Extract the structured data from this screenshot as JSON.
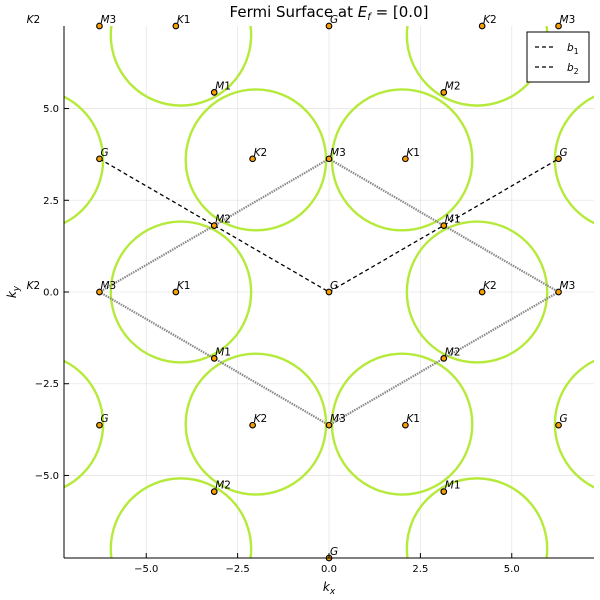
{
  "chart_data": {
    "type": "scatter",
    "title": "Fermi Surface at E_f = [0.0]",
    "title_parts": {
      "main": "Fermi Surface at ",
      "var": "E",
      "sub": "f",
      "rest": " = [0.0]"
    },
    "xlabel": {
      "base": "k",
      "sub": "x"
    },
    "ylabel": {
      "base": "k",
      "sub": "y"
    },
    "xlim": [
      -7.25,
      7.25
    ],
    "ylim": [
      -7.25,
      7.25
    ],
    "xticks": [
      -5.0,
      -2.5,
      0.0,
      2.5,
      5.0
    ],
    "yticks": [
      -5.0,
      -2.5,
      0.0,
      2.5,
      5.0
    ],
    "xtick_labels": [
      "−5.0",
      "−2.5",
      "0.0",
      "2.5",
      "5.0"
    ],
    "ytick_labels": [
      "−5.0",
      "−2.5",
      "0.0",
      "2.5",
      "5.0"
    ],
    "grid": true,
    "legend": {
      "placement": "top-right",
      "entries": [
        {
          "base": "b",
          "sub": "1",
          "style": "dashed",
          "color": "#000000"
        },
        {
          "base": "b",
          "sub": "2",
          "style": "dashed",
          "color": "#000000"
        }
      ]
    },
    "fermi_surface": {
      "color": "#b5ea3b",
      "radius": 1.92,
      "centers": [
        [
          -4.05,
          7.0
        ],
        [
          -4.05,
          0.0
        ],
        [
          -4.05,
          -7.0
        ],
        [
          4.05,
          7.0
        ],
        [
          4.05,
          0.0
        ],
        [
          4.05,
          -7.0
        ],
        [
          -2.0,
          3.6
        ],
        [
          -2.0,
          -3.6
        ],
        [
          2.0,
          3.6
        ],
        [
          2.0,
          -3.6
        ],
        [
          8.1,
          3.6
        ],
        [
          8.1,
          -3.6
        ],
        [
          -8.1,
          3.6
        ],
        [
          -8.1,
          -3.6
        ]
      ]
    },
    "zone_boundary": {
      "color": "#888888",
      "polygons": [
        [
          [
            0,
            3.63
          ],
          [
            -3.14,
            1.81
          ],
          [
            -6.28,
            0
          ],
          [
            -3.14,
            -1.81
          ],
          [
            0,
            -3.63
          ],
          [
            3.14,
            -1.81
          ],
          [
            6.28,
            0
          ],
          [
            3.14,
            1.81
          ]
        ]
      ]
    },
    "reciprocal_vectors": [
      {
        "name": "b1",
        "from": [
          -6.28,
          3.63
        ],
        "to": [
          0,
          0
        ],
        "through": [
          -3.14,
          1.81
        ]
      },
      {
        "name": "b2",
        "from": [
          0,
          0
        ],
        "to": [
          6.28,
          3.63
        ],
        "through": [
          3.14,
          1.81
        ]
      }
    ],
    "points": [
      {
        "label": "K2",
        "x": -8.3,
        "y": 7.25
      },
      {
        "label": "M3",
        "x": -6.28,
        "y": 7.25
      },
      {
        "label": "K1",
        "x": -4.19,
        "y": 7.25
      },
      {
        "label": "G",
        "x": 0.0,
        "y": 7.25
      },
      {
        "label": "K2",
        "x": 4.19,
        "y": 7.25
      },
      {
        "label": "M3",
        "x": 6.28,
        "y": 7.25
      },
      {
        "label": "M1",
        "x": -3.14,
        "y": 5.44
      },
      {
        "label": "M2",
        "x": 3.14,
        "y": 5.44
      },
      {
        "label": "G",
        "x": -6.28,
        "y": 3.63
      },
      {
        "label": "K2",
        "x": -2.09,
        "y": 3.63
      },
      {
        "label": "M3",
        "x": 0.0,
        "y": 3.63
      },
      {
        "label": "K1",
        "x": 2.09,
        "y": 3.63
      },
      {
        "label": "G",
        "x": 6.28,
        "y": 3.63
      },
      {
        "label": "M2",
        "x": -3.14,
        "y": 1.81
      },
      {
        "label": "M1",
        "x": 3.14,
        "y": 1.81
      },
      {
        "label": "K2",
        "x": -8.3,
        "y": 0.0
      },
      {
        "label": "M3",
        "x": -6.28,
        "y": 0.0
      },
      {
        "label": "K1",
        "x": -4.19,
        "y": 0.0
      },
      {
        "label": "G",
        "x": 0.0,
        "y": 0.0
      },
      {
        "label": "K2",
        "x": 4.19,
        "y": 0.0
      },
      {
        "label": "M3",
        "x": 6.28,
        "y": 0.0
      },
      {
        "label": "M1",
        "x": -3.14,
        "y": -1.81
      },
      {
        "label": "M2",
        "x": 3.14,
        "y": -1.81
      },
      {
        "label": "G",
        "x": -6.28,
        "y": -3.63
      },
      {
        "label": "K2",
        "x": -2.09,
        "y": -3.63
      },
      {
        "label": "M3",
        "x": 0.0,
        "y": -3.63
      },
      {
        "label": "K1",
        "x": 2.09,
        "y": -3.63
      },
      {
        "label": "G",
        "x": 6.28,
        "y": -3.63
      },
      {
        "label": "M2",
        "x": -3.14,
        "y": -5.44
      },
      {
        "label": "M1",
        "x": 3.14,
        "y": -5.44
      },
      {
        "label": "G",
        "x": 0.0,
        "y": -7.25
      }
    ],
    "point_fill": "#f5a000",
    "point_stroke": "#000000"
  }
}
